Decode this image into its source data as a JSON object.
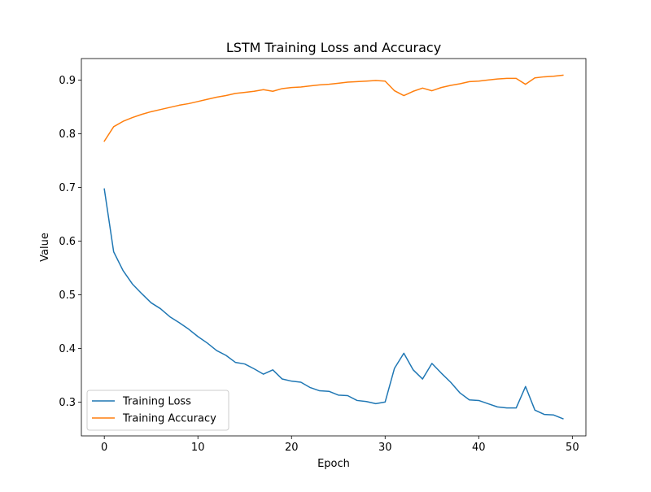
{
  "chart_data": {
    "type": "line",
    "title": "LSTM Training Loss and Accuracy",
    "xlabel": "Epoch",
    "ylabel": "Value",
    "xlim": [
      -2.45,
      51.45
    ],
    "ylim": [
      0.237,
      0.94
    ],
    "xticks": [
      0,
      10,
      20,
      30,
      40,
      50
    ],
    "xtick_labels": [
      "0",
      "10",
      "20",
      "30",
      "40",
      "50"
    ],
    "yticks": [
      0.3,
      0.4,
      0.5,
      0.6,
      0.7,
      0.8,
      0.9
    ],
    "ytick_labels": [
      "0.3",
      "0.4",
      "0.5",
      "0.6",
      "0.7",
      "0.8",
      "0.9"
    ],
    "grid": false,
    "legend_position": "lower-left",
    "x": [
      0,
      1,
      2,
      3,
      4,
      5,
      6,
      7,
      8,
      9,
      10,
      11,
      12,
      13,
      14,
      15,
      16,
      17,
      18,
      19,
      20,
      21,
      22,
      23,
      24,
      25,
      26,
      27,
      28,
      29,
      30,
      31,
      32,
      33,
      34,
      35,
      36,
      37,
      38,
      39,
      40,
      41,
      42,
      43,
      44,
      45,
      46,
      47,
      48,
      49
    ],
    "series": [
      {
        "name": "Training Loss",
        "color": "#1f77b4",
        "values": [
          0.697,
          0.58,
          0.545,
          0.52,
          0.502,
          0.485,
          0.474,
          0.459,
          0.448,
          0.436,
          0.422,
          0.41,
          0.396,
          0.387,
          0.374,
          0.371,
          0.362,
          0.352,
          0.36,
          0.343,
          0.339,
          0.337,
          0.327,
          0.321,
          0.32,
          0.313,
          0.312,
          0.303,
          0.301,
          0.297,
          0.3,
          0.363,
          0.391,
          0.36,
          0.343,
          0.372,
          0.354,
          0.337,
          0.317,
          0.304,
          0.303,
          0.297,
          0.291,
          0.289,
          0.289,
          0.329,
          0.285,
          0.277,
          0.276,
          0.269
        ]
      },
      {
        "name": "Training Accuracy",
        "color": "#ff7f0e",
        "values": [
          0.786,
          0.813,
          0.823,
          0.83,
          0.836,
          0.841,
          0.845,
          0.849,
          0.853,
          0.856,
          0.86,
          0.864,
          0.868,
          0.871,
          0.875,
          0.877,
          0.879,
          0.882,
          0.879,
          0.884,
          0.886,
          0.887,
          0.889,
          0.891,
          0.892,
          0.894,
          0.896,
          0.897,
          0.898,
          0.899,
          0.898,
          0.88,
          0.871,
          0.879,
          0.885,
          0.88,
          0.886,
          0.89,
          0.893,
          0.897,
          0.898,
          0.9,
          0.902,
          0.903,
          0.903,
          0.892,
          0.904,
          0.906,
          0.907,
          0.909
        ]
      }
    ]
  }
}
